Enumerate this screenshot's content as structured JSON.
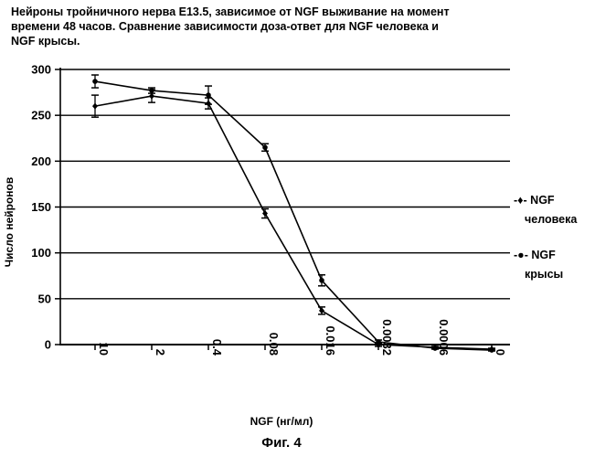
{
  "chart_data": {
    "type": "line",
    "title_lines": [
      "Нейроны тройничного нерва E13.5, зависимое от NGF выживание на момент",
      "времени 48 часов. Сравнение зависимости доза-ответ для NGF человека и",
      "NGF крысы."
    ],
    "xlabel": "NGF (нг/мл)",
    "ylabel": "Число нейронов",
    "categories": [
      "10",
      "2",
      "0.4",
      "0.08",
      "0.016",
      "0.0032",
      "0.0006",
      "0"
    ],
    "y_ticks": [
      "0",
      "50",
      "100",
      "150",
      "200",
      "250",
      "300"
    ],
    "ylim": [
      0,
      300
    ],
    "grid": "horizontal",
    "legend_position": "right",
    "series": [
      {
        "name": "NGF человека",
        "legend_lines": [
          "-♦- NGF",
          "человека"
        ],
        "marker": "diamond",
        "values": [
          260,
          271,
          263,
          143,
          37,
          0,
          -3,
          -5
        ],
        "errors": [
          12,
          7,
          6,
          5,
          4,
          2,
          1,
          1
        ]
      },
      {
        "name": "NGF крысы",
        "legend_lines": [
          "-●- NGF",
          "крысы"
        ],
        "marker": "circle",
        "values": [
          287,
          277,
          272,
          215,
          70,
          3,
          -4,
          -6
        ],
        "errors": [
          7,
          3,
          10,
          4,
          6,
          2,
          1,
          1
        ]
      }
    ],
    "line_color": "#000000",
    "grid_color": "#000000"
  },
  "figure": {
    "caption": "Фиг. 4"
  }
}
